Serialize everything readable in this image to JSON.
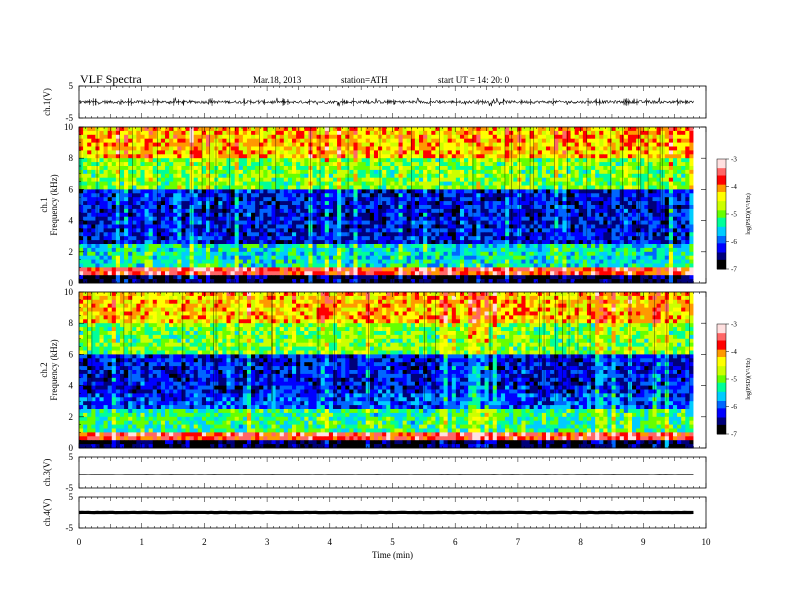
{
  "header": {
    "title": "VLF  Spectra",
    "date": "Mar.18, 2013",
    "station": "station=ATH",
    "start": "start  UT =   14: 20: 0"
  },
  "chart_data": [
    {
      "type": "line",
      "panel": "ch1-waveform",
      "ylabel": "ch.1(V)",
      "yticks": [
        "5",
        "-5"
      ],
      "ylim": [
        -5,
        5
      ],
      "series": [
        {
          "values_description": "noisy signal centered near 0 V with ~±1 V spikes"
        }
      ]
    },
    {
      "type": "heatmap",
      "panel": "ch1-spectrogram",
      "ylabel": "ch.1\nFrequency  (kHz)",
      "ylabel_lines": [
        "ch.1",
        "Frequency  (kHz)"
      ],
      "yticks": [
        "0",
        "2",
        "4",
        "6",
        "8",
        "10"
      ],
      "ylim": [
        0,
        10
      ],
      "colorbar": {
        "label": "log(PSD)(V²/Hz)",
        "ticks": [
          "-3",
          "-4",
          "-5",
          "-6",
          "-7"
        ],
        "range": [
          -7,
          -3
        ]
      }
    },
    {
      "type": "heatmap",
      "panel": "ch2-spectrogram",
      "ylabel": "ch.2\nFrequency  (kHz)",
      "ylabel_lines": [
        "ch.2",
        "Frequency  (kHz)"
      ],
      "yticks": [
        "0",
        "2",
        "4",
        "6",
        "8",
        "10"
      ],
      "ylim": [
        0,
        10
      ],
      "colorbar": {
        "label": "log(PSD)(V²/Hz)",
        "ticks": [
          "-3",
          "-4",
          "-5",
          "-6",
          "-7"
        ],
        "range": [
          -7,
          -3
        ]
      }
    },
    {
      "type": "line",
      "panel": "ch3-waveform",
      "ylabel": "ch.3(V)",
      "yticks": [
        "5",
        "-5"
      ],
      "ylim": [
        -5,
        5
      ],
      "series": [
        {
          "values_description": "flat line near 0 V"
        }
      ]
    },
    {
      "type": "line",
      "panel": "ch4-waveform",
      "ylabel": "ch.4(V)",
      "yticks": [
        "5",
        "-5"
      ],
      "ylim": [
        -5,
        5
      ],
      "series": [
        {
          "values_description": "thick band near 0 V"
        }
      ]
    }
  ],
  "xaxis": {
    "label": "Time  (min)",
    "ticks": [
      "0",
      "1",
      "2",
      "3",
      "4",
      "5",
      "6",
      "7",
      "8",
      "9",
      "10"
    ],
    "xlim": [
      0,
      10
    ],
    "data_end": 9.8
  },
  "colormap": [
    "#000000",
    "#00007a",
    "#0000ff",
    "#0066ff",
    "#00ccff",
    "#00ff99",
    "#66ff00",
    "#ccff00",
    "#ffff00",
    "#ff9900",
    "#ff0000",
    "#ff6666",
    "#ffe0e0"
  ]
}
